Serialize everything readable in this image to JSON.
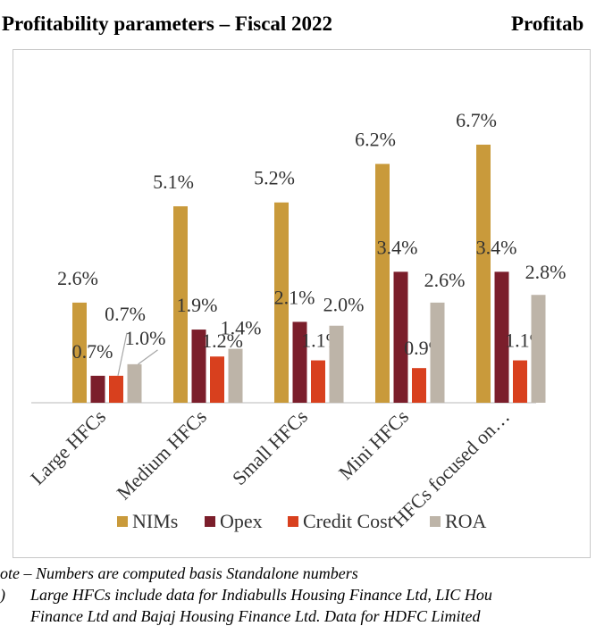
{
  "headings": {
    "left": "Profitability parameters – Fiscal 2022",
    "right": "Profitab"
  },
  "notes": {
    "note": "ote – Numbers are computed basis Standalone numbers",
    "item_marker": ")",
    "item_text": "Large HFCs include data for Indiabulls Housing Finance Ltd, LIC Hou",
    "cut_line": "Finance Ltd and Bajaj Housing Finance Ltd. Data for HDFC Limited"
  },
  "chart_data": {
    "type": "bar",
    "categories": [
      "Large HFCs",
      "Medium HFCs",
      "Small HFCs",
      "Mini HFCs",
      "HFCs focused on…"
    ],
    "series": [
      {
        "name": "NIMs",
        "color": "#c99a3b",
        "values": [
          2.6,
          5.1,
          5.2,
          6.2,
          6.7
        ],
        "labels": [
          "2.6%",
          "5.1%",
          "5.2%",
          "6.2%",
          "6.7%"
        ]
      },
      {
        "name": "Opex",
        "color": "#7b1e2b",
        "values": [
          0.7,
          1.9,
          2.1,
          3.4,
          3.4
        ],
        "labels": [
          "0.7%",
          "1.9%",
          "2.1%",
          "3.4%",
          "3.4%"
        ]
      },
      {
        "name": "Credit Cost",
        "color": "#d8401e",
        "values": [
          0.7,
          1.2,
          1.1,
          0.9,
          1.1
        ],
        "labels": [
          "0.7%",
          "1.2%",
          "1.1%",
          "0.9%",
          "1.1%"
        ]
      },
      {
        "name": "ROA",
        "color": "#bdb4a8",
        "values": [
          1.0,
          1.4,
          2.0,
          2.6,
          2.8
        ],
        "labels": [
          "1.0%",
          "1.4%",
          "2.0%",
          "2.6%",
          "2.8%"
        ]
      }
    ],
    "ylim": [
      0,
      6.7
    ],
    "grid": false,
    "legend_position": "bottom"
  }
}
